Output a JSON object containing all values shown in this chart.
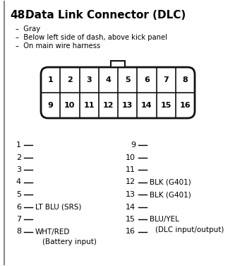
{
  "title_num": "48.",
  "title_text": "  Data Link Connector (DLC)",
  "bullets": [
    "Gray",
    "Below left side of dash, above kick panel",
    "On main wire harness"
  ],
  "top_pins": [
    1,
    2,
    3,
    4,
    5,
    6,
    7,
    8
  ],
  "bot_pins": [
    9,
    10,
    11,
    12,
    13,
    14,
    15,
    16
  ],
  "left_pins": [
    {
      "num": "1",
      "label": ""
    },
    {
      "num": "2",
      "label": ""
    },
    {
      "num": "3",
      "label": ""
    },
    {
      "num": "4",
      "label": ""
    },
    {
      "num": "5",
      "label": ""
    },
    {
      "num": "6",
      "label": "LT BLU (SRS)"
    },
    {
      "num": "7",
      "label": ""
    },
    {
      "num": "8",
      "label": "WHT/RED",
      "sub": "(Battery input)"
    }
  ],
  "right_pins": [
    {
      "num": "9",
      "label": ""
    },
    {
      "num": "10",
      "label": ""
    },
    {
      "num": "11",
      "label": ""
    },
    {
      "num": "12",
      "label": "BLK (G401)"
    },
    {
      "num": "13",
      "label": "BLK (G401)"
    },
    {
      "num": "14",
      "label": ""
    },
    {
      "num": "15",
      "label": "BLU/YEL",
      "sub": "(DLC input/output)"
    },
    {
      "num": "16",
      "label": ""
    }
  ],
  "bg_color": "#ffffff",
  "connector_fill": "#ffffff",
  "connector_edge": "#111111",
  "left_border_color": "#999999"
}
